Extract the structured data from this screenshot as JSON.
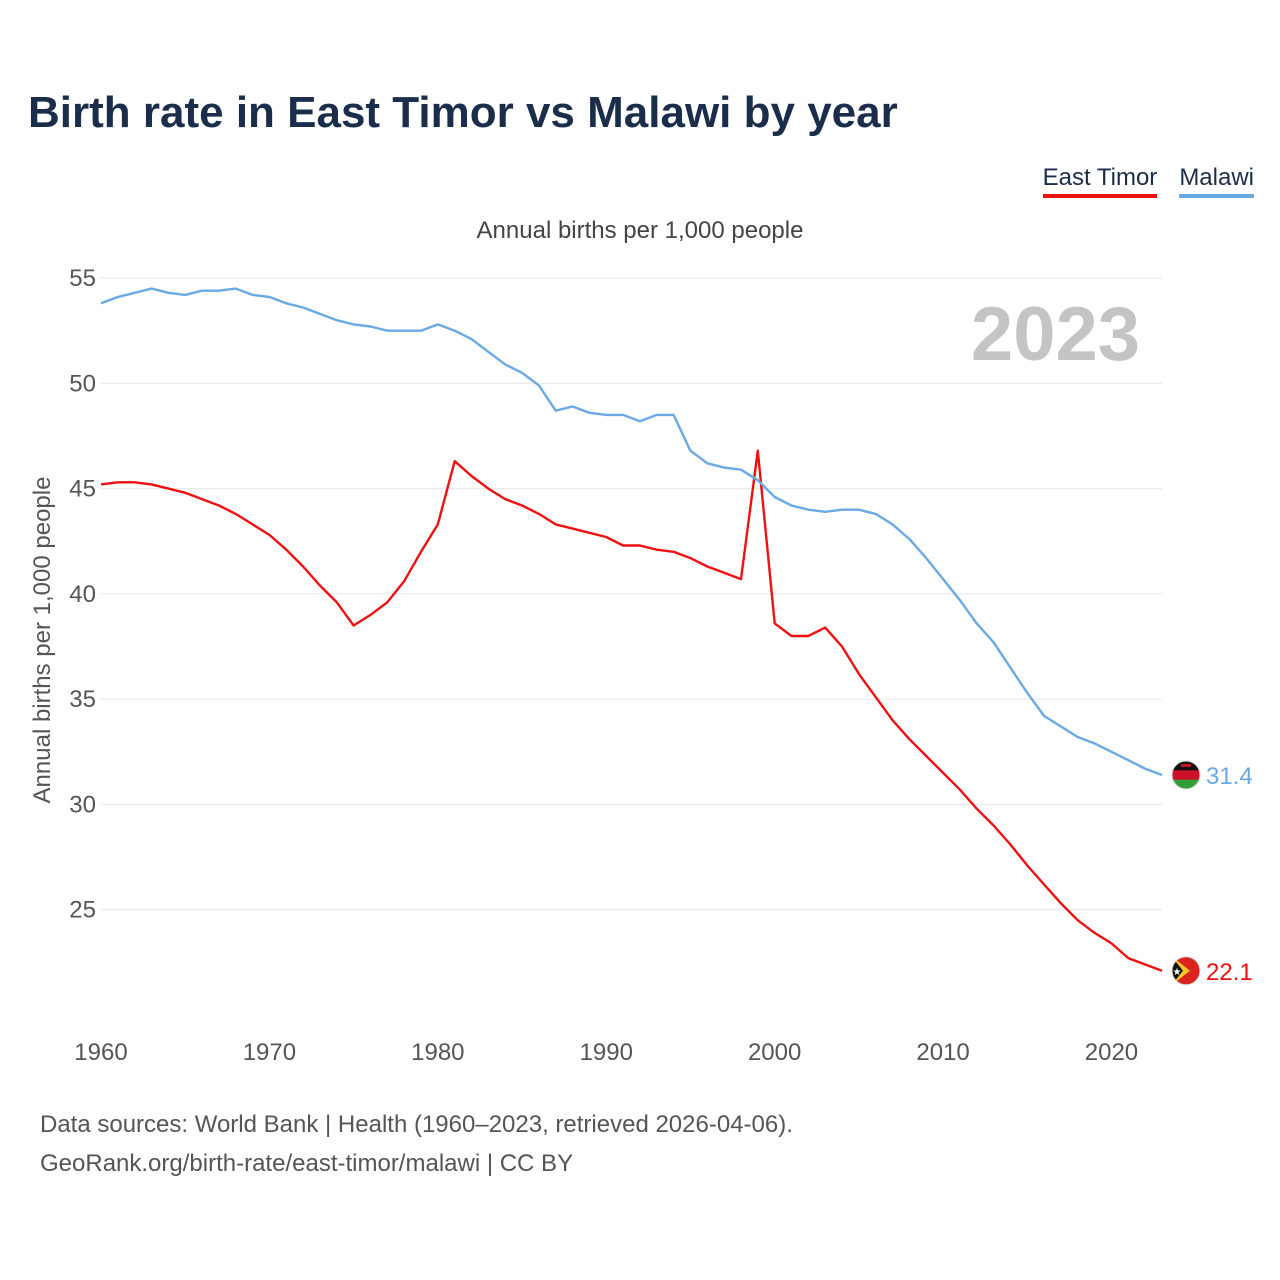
{
  "title": "Birth rate in East Timor vs Malawi by year",
  "subtitle": "Annual births per 1,000 people",
  "legend": [
    {
      "label": "East Timor",
      "color": "#ee1111"
    },
    {
      "label": "Malawi",
      "color": "#6aaae4"
    }
  ],
  "year_watermark": "2023",
  "end_labels": {
    "east_timor": "22.1",
    "malawi": "31.4"
  },
  "flag_icons": {
    "east_timor": "east-timor-flag-icon",
    "malawi": "malawi-flag-icon"
  },
  "footer": {
    "line1": "Data sources: World Bank | Health (1960–2023, retrieved 2026-04-06).",
    "line2": "GeoRank.org/birth-rate/east-timor/malawi | CC BY"
  },
  "chart_data": {
    "type": "line",
    "title": "Birth rate in East Timor vs Malawi by year",
    "subtitle": "Annual births per 1,000 people",
    "xlabel": "",
    "ylabel": "Annual births per 1,000 people",
    "xlim": [
      1960,
      2023
    ],
    "ylim": [
      20,
      56
    ],
    "yticks": [
      25,
      30,
      35,
      40,
      45,
      50,
      55
    ],
    "xticks": [
      1960,
      1970,
      1980,
      1990,
      2000,
      2010,
      2020
    ],
    "grid": true,
    "legend_position": "top-right",
    "x": [
      1960,
      1961,
      1962,
      1963,
      1964,
      1965,
      1966,
      1967,
      1968,
      1969,
      1970,
      1971,
      1972,
      1973,
      1974,
      1975,
      1976,
      1977,
      1978,
      1979,
      1980,
      1981,
      1982,
      1983,
      1984,
      1985,
      1986,
      1987,
      1988,
      1989,
      1990,
      1991,
      1992,
      1993,
      1994,
      1995,
      1996,
      1997,
      1998,
      1999,
      2000,
      2001,
      2002,
      2003,
      2004,
      2005,
      2006,
      2007,
      2008,
      2009,
      2010,
      2011,
      2012,
      2013,
      2014,
      2015,
      2016,
      2017,
      2018,
      2019,
      2020,
      2021,
      2022,
      2023
    ],
    "series": [
      {
        "name": "East Timor",
        "color": "#ee1111",
        "values": [
          45.2,
          45.3,
          45.3,
          45.2,
          45.0,
          44.8,
          44.5,
          44.2,
          43.8,
          43.3,
          42.8,
          42.1,
          41.3,
          40.4,
          39.6,
          38.5,
          39.0,
          39.6,
          40.6,
          42.0,
          43.3,
          46.3,
          45.6,
          45.0,
          44.5,
          44.2,
          43.8,
          43.3,
          43.1,
          42.9,
          42.7,
          42.3,
          42.3,
          42.1,
          42.0,
          41.7,
          41.3,
          41.0,
          40.7,
          46.8,
          38.6,
          38.0,
          38.0,
          38.4,
          37.5,
          36.2,
          35.1,
          34.0,
          33.1,
          32.3,
          31.5,
          30.7,
          29.8,
          29.0,
          28.1,
          27.1,
          26.2,
          25.3,
          24.5,
          23.9,
          23.4,
          22.7,
          22.4,
          22.1
        ]
      },
      {
        "name": "Malawi",
        "color": "#6aaae4",
        "values": [
          53.8,
          54.1,
          54.3,
          54.5,
          54.3,
          54.2,
          54.4,
          54.4,
          54.5,
          54.2,
          54.1,
          53.8,
          53.6,
          53.3,
          53.0,
          52.8,
          52.7,
          52.5,
          52.5,
          52.5,
          52.8,
          52.5,
          52.1,
          51.5,
          50.9,
          50.5,
          49.9,
          48.7,
          48.9,
          48.6,
          48.5,
          48.5,
          48.2,
          48.5,
          48.5,
          46.8,
          46.2,
          46.0,
          45.9,
          45.4,
          44.6,
          44.2,
          44.0,
          43.9,
          44.0,
          44.0,
          43.8,
          43.3,
          42.6,
          41.7,
          40.7,
          39.7,
          38.6,
          37.7,
          36.5,
          35.3,
          34.2,
          33.7,
          33.2,
          32.9,
          32.5,
          32.1,
          31.7,
          31.4
        ]
      }
    ]
  }
}
